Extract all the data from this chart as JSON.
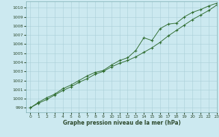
{
  "xlabel": "Graphe pression niveau de la mer (hPa)",
  "xlim": [
    -0.5,
    23
  ],
  "ylim": [
    998.5,
    1010.7
  ],
  "yticks": [
    999,
    1000,
    1001,
    1002,
    1003,
    1004,
    1005,
    1006,
    1007,
    1008,
    1009,
    1010
  ],
  "xticks": [
    0,
    1,
    2,
    3,
    4,
    5,
    6,
    7,
    8,
    9,
    10,
    11,
    12,
    13,
    14,
    15,
    16,
    17,
    18,
    19,
    20,
    21,
    22,
    23
  ],
  "background_color": "#cce9f0",
  "grid_color": "#a8cdd6",
  "line_color": "#2d6b2d",
  "tick_color": "#2d4a2d",
  "line1_x": [
    0,
    1,
    2,
    3,
    4,
    5,
    6,
    7,
    8,
    9,
    10,
    11,
    12,
    13,
    14,
    15,
    16,
    17,
    18,
    19,
    20,
    21,
    22,
    23
  ],
  "line1_y": [
    999.0,
    999.5,
    999.9,
    1000.4,
    1000.9,
    1001.3,
    1001.8,
    1002.2,
    1002.7,
    1003.0,
    1003.5,
    1003.9,
    1004.2,
    1004.6,
    1005.1,
    1005.6,
    1006.2,
    1006.9,
    1007.5,
    1008.1,
    1008.7,
    1009.2,
    1009.7,
    1010.3
  ],
  "line2_x": [
    0,
    1,
    2,
    3,
    4,
    5,
    6,
    7,
    8,
    9,
    10,
    11,
    12,
    13,
    14,
    15,
    16,
    17,
    18,
    19,
    20,
    21,
    22,
    23
  ],
  "line2_y": [
    999.0,
    999.6,
    1000.1,
    1000.5,
    1001.1,
    1001.5,
    1002.0,
    1002.5,
    1002.9,
    1003.1,
    1003.7,
    1004.2,
    1004.5,
    1005.3,
    1006.7,
    1006.4,
    1007.7,
    1008.2,
    1008.3,
    1009.0,
    1009.5,
    1009.8,
    1010.2,
    1010.5
  ]
}
